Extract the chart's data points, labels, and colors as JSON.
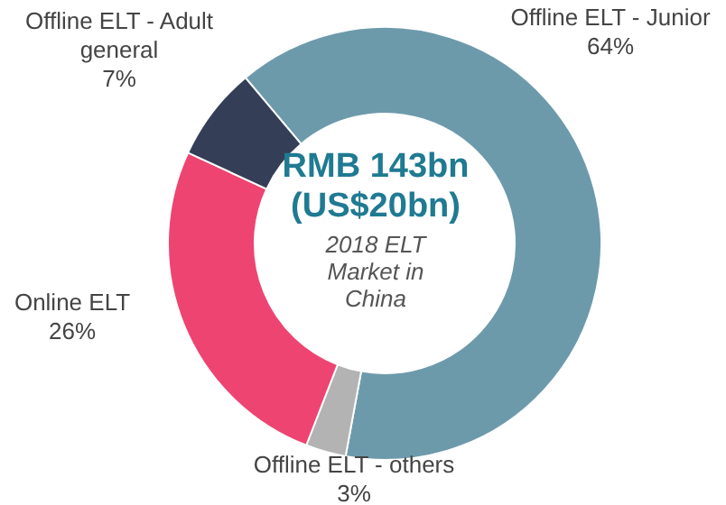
{
  "chart_data": {
    "type": "donut",
    "categories": [
      "Offline ELT - Junior",
      "Offline ELT - others",
      "Online ELT",
      "Offline ELT - Adult general"
    ],
    "values": [
      64,
      3,
      26,
      7
    ],
    "value_labels": [
      "64%",
      "3%",
      "26%",
      "7%"
    ],
    "colors": [
      "#6d9aab",
      "#b3b3b3",
      "#ee4472",
      "#343f57"
    ],
    "annotations": [
      "RMB 143bn",
      "(US$20bn)",
      "2018 ELT Market in China"
    ]
  }
}
